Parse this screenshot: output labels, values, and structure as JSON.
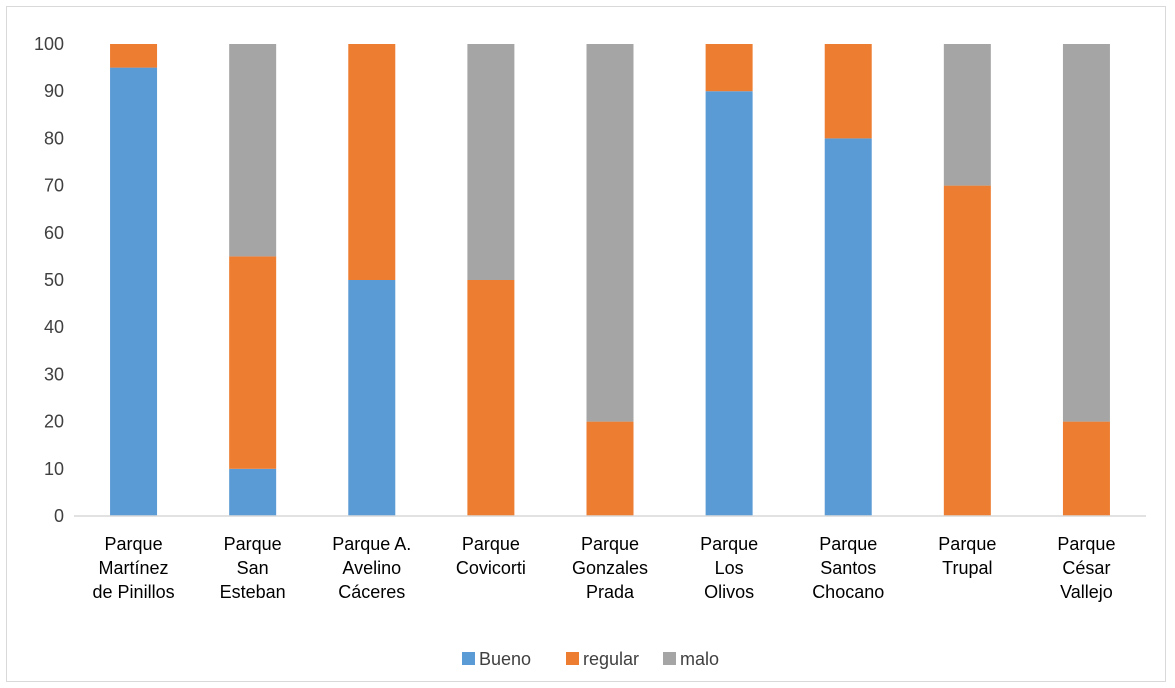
{
  "chart_data": {
    "type": "bar",
    "stacked": true,
    "categories": [
      "Parque Martínez de Pinillos",
      "Parque San Esteban",
      "Parque A. Avelino Cáceres",
      "Parque Covicorti",
      "Parque Gonzales Prada",
      "Parque Los Olivos",
      "Parque Santos Chocano",
      "Parque Trupal",
      "Parque César Vallejo"
    ],
    "category_lines": [
      [
        "Parque",
        "Martínez",
        "de Pinillos"
      ],
      [
        "Parque",
        "San",
        "Esteban"
      ],
      [
        "Parque A.",
        "Avelino",
        "Cáceres"
      ],
      [
        "Parque",
        "Covicorti"
      ],
      [
        "Parque",
        "Gonzales",
        "Prada"
      ],
      [
        "Parque",
        "Los",
        "Olivos"
      ],
      [
        "Parque",
        "Santos",
        "Chocano"
      ],
      [
        "Parque",
        "Trupal"
      ],
      [
        "Parque",
        "César",
        "Vallejo"
      ]
    ],
    "series": [
      {
        "name": "Bueno",
        "color": "#5b9bd5",
        "values": [
          95,
          10,
          50,
          0,
          0,
          90,
          80,
          0,
          0
        ]
      },
      {
        "name": "regular",
        "color": "#ed7d31",
        "values": [
          5,
          45,
          50,
          50,
          20,
          10,
          20,
          70,
          20
        ]
      },
      {
        "name": "malo",
        "color": "#a5a5a5",
        "values": [
          0,
          45,
          0,
          50,
          80,
          0,
          0,
          30,
          80
        ]
      }
    ],
    "ylim": [
      0,
      100
    ],
    "yticks": [
      0,
      10,
      20,
      30,
      40,
      50,
      60,
      70,
      80,
      90,
      100
    ],
    "grid": false,
    "legend_position": "bottom"
  }
}
